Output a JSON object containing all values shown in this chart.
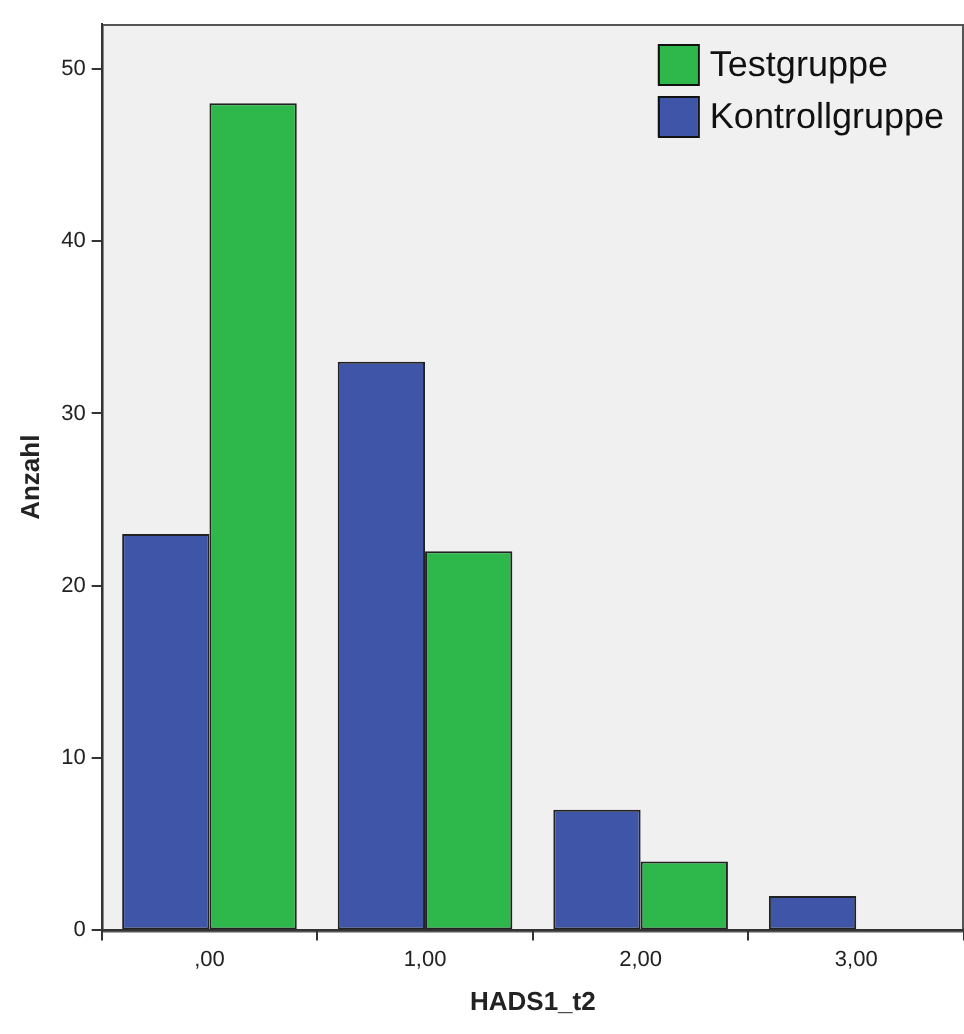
{
  "chart_data": {
    "type": "bar",
    "xlabel": "HADS1_t2",
    "ylabel": "Anzahl",
    "categories": [
      ",00",
      "1,00",
      "2,00",
      "3,00"
    ],
    "series": [
      {
        "name": "Kontrollgruppe",
        "color": "#3f55a8",
        "values": [
          23,
          33,
          7,
          2
        ]
      },
      {
        "name": "Testgruppe",
        "color": "#2eb84b",
        "values": [
          48,
          22,
          4,
          0
        ]
      }
    ],
    "ylim": [
      0,
      52.6
    ],
    "yticks": [
      0,
      10,
      20,
      30,
      40,
      50
    ],
    "grid": false,
    "legend": "top right"
  }
}
